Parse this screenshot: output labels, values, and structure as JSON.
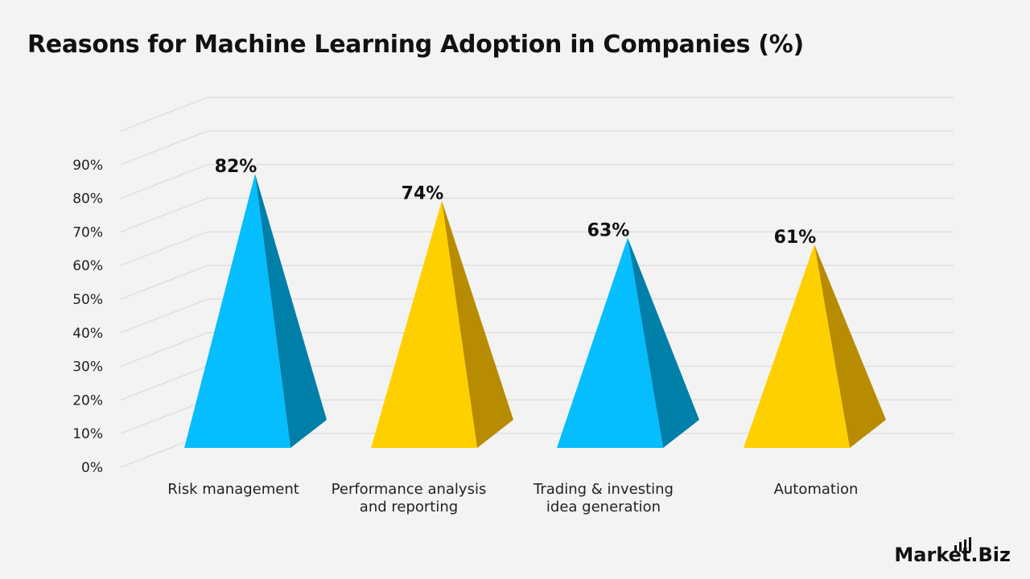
{
  "title": "Reasons for Machine Learning Adoption in Companies (%)",
  "brand": {
    "text": "Market.Biz",
    "icon": "bar-chart-icon"
  },
  "colors": {
    "background": "#f3f3f3",
    "grid": "#d6d6d6",
    "blue_front": "#06bdfd",
    "blue_side": "#007fa9",
    "yellow_front": "#ffd000",
    "yellow_side": "#b88c00"
  },
  "chart_data": {
    "type": "bar",
    "style": "3d-pyramid",
    "categories": [
      "Risk management",
      "Performance analysis and reporting",
      "Trading & investing idea generation",
      "Automation"
    ],
    "category_lines": [
      [
        "Risk management"
      ],
      [
        "Performance analysis",
        "and reporting"
      ],
      [
        "Trading & investing",
        "idea generation"
      ],
      [
        "Automation"
      ]
    ],
    "values": [
      82,
      74,
      63,
      61
    ],
    "data_labels": [
      "82%",
      "74%",
      "63%",
      "61%"
    ],
    "bar_colors": [
      "blue",
      "yellow",
      "blue",
      "yellow"
    ],
    "ylim": [
      0,
      100
    ],
    "yticks": [
      0,
      10,
      20,
      30,
      40,
      50,
      60,
      70,
      80,
      90
    ],
    "ytick_labels": [
      "0%",
      "10%",
      "20%",
      "30%",
      "40%",
      "50%",
      "60%",
      "70%",
      "80%",
      "90%"
    ],
    "grid": true,
    "legend": false,
    "xlabel": "",
    "ylabel": ""
  }
}
